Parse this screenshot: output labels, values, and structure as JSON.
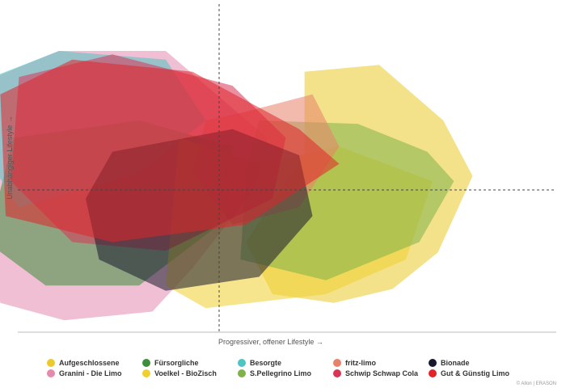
{
  "chart_data": {
    "type": "area",
    "xlabel": "Progressiver, offener Lifestyle →",
    "ylabel": "Unabhängiger Lifestyle →",
    "xlim": [
      -1,
      1
    ],
    "ylim": [
      -1,
      1
    ],
    "series": [
      {
        "name": "Aufgeschlossene",
        "color": "#EBCB2C",
        "points": [
          [
            0.32,
            0.68
          ],
          [
            0.6,
            0.72
          ],
          [
            0.84,
            0.4
          ],
          [
            0.95,
            0.08
          ],
          [
            0.82,
            -0.36
          ],
          [
            0.65,
            -0.57
          ],
          [
            0.43,
            -0.65
          ],
          [
            0.2,
            -0.6
          ],
          [
            0.1,
            -0.3
          ],
          [
            0.32,
            0.2
          ]
        ]
      },
      {
        "name": "Granini - Die Limo",
        "color": "#E38AAE",
        "points": [
          [
            -0.84,
            0.65
          ],
          [
            -0.6,
            0.8
          ],
          [
            -0.2,
            0.8
          ],
          [
            0.18,
            0.3
          ],
          [
            0.13,
            0.0
          ],
          [
            -0.1,
            -0.45
          ],
          [
            -0.25,
            -0.7
          ],
          [
            -0.58,
            -0.75
          ],
          [
            -0.82,
            -0.65
          ],
          [
            -0.87,
            -0.2
          ]
        ]
      },
      {
        "name": "Fürsorgliche",
        "color": "#3E8E3E",
        "points": [
          [
            -0.77,
            0.3
          ],
          [
            -0.3,
            0.4
          ],
          [
            0.05,
            0.25
          ],
          [
            0.0,
            -0.2
          ],
          [
            -0.3,
            -0.55
          ],
          [
            -0.65,
            -0.55
          ],
          [
            -0.87,
            -0.3
          ]
        ]
      },
      {
        "name": "Voelkel - BioZisch",
        "color": "#F0D030",
        "points": [
          [
            -0.15,
            0.3
          ],
          [
            0.15,
            0.15
          ],
          [
            0.45,
            0.25
          ],
          [
            0.8,
            0.05
          ],
          [
            0.7,
            -0.4
          ],
          [
            0.4,
            -0.6
          ],
          [
            -0.05,
            -0.68
          ],
          [
            -0.2,
            -0.55
          ]
        ]
      },
      {
        "name": "Besorgte",
        "color": "#4EC5C1",
        "points": [
          [
            -0.9,
            0.62
          ],
          [
            -0.6,
            0.8
          ],
          [
            -0.2,
            0.75
          ],
          [
            -0.05,
            0.4
          ],
          [
            -0.3,
            0.1
          ],
          [
            -0.75,
            -0.1
          ],
          [
            -0.92,
            0.3
          ]
        ]
      },
      {
        "name": "S.Pellegrino Limo",
        "color": "#7FB24A",
        "points": [
          [
            0.15,
            0.4
          ],
          [
            0.52,
            0.38
          ],
          [
            0.78,
            0.22
          ],
          [
            0.88,
            0.05
          ],
          [
            0.75,
            -0.3
          ],
          [
            0.4,
            -0.52
          ],
          [
            0.08,
            -0.4
          ],
          [
            0.1,
            0.1
          ]
        ]
      },
      {
        "name": "fritz-limo",
        "color": "#E8826A",
        "points": [
          [
            0.1,
            0.45
          ],
          [
            0.35,
            0.55
          ],
          [
            0.45,
            0.25
          ],
          [
            0.3,
            -0.1
          ],
          [
            0.05,
            -0.2
          ],
          [
            -0.1,
            0.1
          ],
          [
            -0.05,
            0.4
          ]
        ]
      },
      {
        "name": "Schwip Schwap Cola",
        "color": "#D83555",
        "points": [
          [
            -0.75,
            0.65
          ],
          [
            -0.4,
            0.78
          ],
          [
            0.05,
            0.6
          ],
          [
            0.25,
            0.3
          ],
          [
            0.2,
            -0.05
          ],
          [
            -0.2,
            -0.35
          ],
          [
            -0.55,
            -0.3
          ],
          [
            -0.78,
            0.05
          ]
        ]
      },
      {
        "name": "Bionade",
        "color": "#1A1A2E",
        "points": [
          [
            -0.4,
            0.22
          ],
          [
            0.05,
            0.35
          ],
          [
            0.3,
            0.2
          ],
          [
            0.35,
            -0.15
          ],
          [
            0.15,
            -0.5
          ],
          [
            -0.2,
            -0.58
          ],
          [
            -0.45,
            -0.4
          ],
          [
            -0.5,
            -0.05
          ]
        ]
      },
      {
        "name": "Gut & Günstig Limo",
        "color": "#E0242A",
        "points": [
          [
            -0.82,
            0.55
          ],
          [
            -0.55,
            0.75
          ],
          [
            -0.1,
            0.68
          ],
          [
            0.3,
            0.35
          ],
          [
            0.45,
            0.15
          ],
          [
            0.1,
            -0.2
          ],
          [
            -0.4,
            -0.3
          ],
          [
            -0.8,
            -0.15
          ]
        ]
      }
    ]
  },
  "legend": {
    "items": [
      {
        "label": "Aufgeschlossene",
        "color": "#EBCB2C"
      },
      {
        "label": "Fürsorgliche",
        "color": "#3E8E3E"
      },
      {
        "label": "Besorgte",
        "color": "#4EC5C1"
      },
      {
        "label": "fritz-limo",
        "color": "#E8826A"
      },
      {
        "label": "Bionade",
        "color": "#1A1A2E"
      },
      {
        "label": "Granini - Die Limo",
        "color": "#E38AAE"
      },
      {
        "label": "Voelkel - BioZisch",
        "color": "#F0D030"
      },
      {
        "label": "S.Pellegrino Limo",
        "color": "#7FB24A"
      },
      {
        "label": "Schwip Schwap Cola",
        "color": "#D83555"
      },
      {
        "label": "Gut & Günstig Limo",
        "color": "#E0242A"
      }
    ]
  },
  "credit": "© Allon | ERASON"
}
